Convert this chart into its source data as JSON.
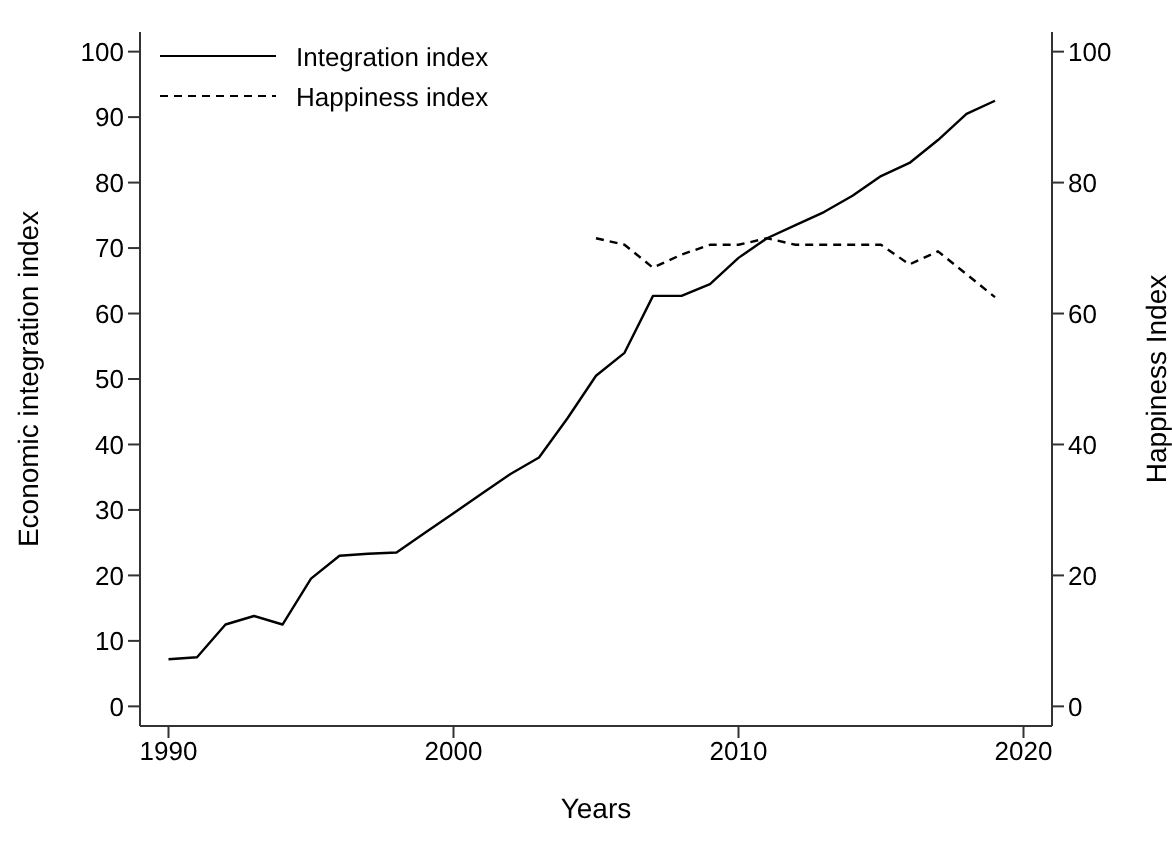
{
  "chart_data": {
    "type": "line",
    "xlabel": "Years",
    "ylabel": "Economic integration index",
    "y2label": "Happiness Index",
    "xlim": [
      1989,
      2021
    ],
    "xticks": [
      1990,
      2000,
      2010,
      2020
    ],
    "ylim": [
      -3,
      103
    ],
    "yticks": [
      0,
      10,
      20,
      30,
      40,
      50,
      60,
      70,
      80,
      90,
      100
    ],
    "y2lim": [
      -3,
      103
    ],
    "y2ticks": [
      0,
      20,
      40,
      60,
      80,
      100
    ],
    "grid": false,
    "legend": "top left",
    "marker": "none",
    "series": [
      {
        "name": "Integration index",
        "color": "#000000",
        "line_style": "solid",
        "x": [
          1990,
          1991,
          1992,
          1993,
          1994,
          1995,
          1996,
          1997,
          1998,
          1999,
          2000,
          2001,
          2002,
          2003,
          2004,
          2005,
          2006,
          2007,
          2008,
          2009,
          2010,
          2011,
          2012,
          2013,
          2014,
          2015,
          2016,
          2017,
          2018,
          2019
        ],
        "values": [
          7.2,
          7.5,
          12.5,
          13.8,
          12.5,
          19.5,
          23,
          23.3,
          23.5,
          26.5,
          29.5,
          32.5,
          35.5,
          38,
          44,
          50.5,
          54,
          62.7,
          62.7,
          64.5,
          68.5,
          71.5,
          73.5,
          75.5,
          78,
          81,
          83,
          86.5,
          90.5,
          92.5
        ]
      },
      {
        "name": "Happiness index",
        "color": "#000000",
        "line_style": "dashed",
        "axis": "y2",
        "x": [
          2005,
          2006,
          2007,
          2008,
          2009,
          2010,
          2011,
          2012,
          2013,
          2014,
          2015,
          2016,
          2017,
          2018,
          2019
        ],
        "values": [
          71.5,
          70.5,
          67,
          69,
          70.5,
          70.5,
          71.5,
          70.5,
          70.5,
          70.5,
          70.5,
          67.5,
          69.5,
          66,
          62.5
        ]
      }
    ]
  }
}
